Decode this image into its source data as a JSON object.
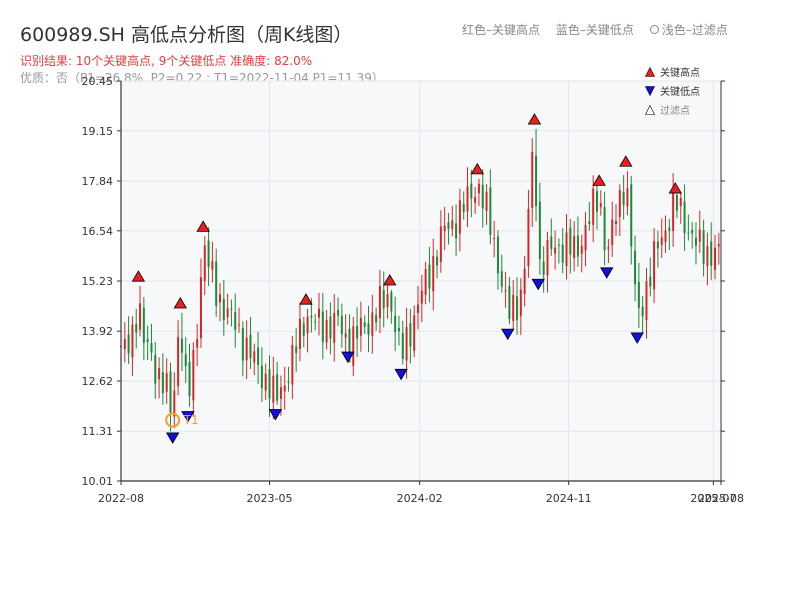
{
  "header": {
    "title": "600989.SH 高低点分析图（周K线图）",
    "result_text": "识别结果: 10个关键高点, 9个关键低点   准确度: 82.0%",
    "quality_text": "优质：否（P1=26.8%, P2=0.22 ; T1=2022-11-04 P1=11.39）",
    "legend_red": "红色–关键高点",
    "legend_blue": "蓝色–关键低点",
    "legend_hollow": "浅色–过滤点"
  },
  "colors": {
    "up": "#d62728",
    "down": "#1a8a3a",
    "high_marker": "#e82020",
    "low_marker": "#1010dd",
    "t1_marker": "#f0a020",
    "plot_bg": "#f7f8fa",
    "grid": "#e2e5ea"
  },
  "chart_data": {
    "type": "candlestick",
    "title": "600989.SH 高低点分析图（周K线图）",
    "xlabel": "",
    "ylabel": "",
    "ylim": [
      10.01,
      20.45
    ],
    "yticks": [
      10.01,
      11.31,
      12.62,
      13.92,
      15.23,
      16.54,
      17.84,
      19.15,
      20.45
    ],
    "ytick_labels": [
      "10.01",
      "11.31",
      "12.62",
      "13.92",
      "15.23",
      "16.54",
      "17.84",
      "19.15",
      "20.45"
    ],
    "xlim": [
      "2022-08-01",
      "2025-08-08"
    ],
    "xticks": [
      {
        "date": "2022-08-01",
        "label": "2022-08"
      },
      {
        "date": "2023-05-01",
        "label": "2023-05"
      },
      {
        "date": "2024-02-01",
        "label": "2024-02"
      },
      {
        "date": "2024-11-01",
        "label": "2024-11"
      },
      {
        "date": "2025-07-25",
        "label": "2025-07"
      },
      {
        "date": "2025-08-08",
        "label": "2025-08"
      }
    ],
    "legend": {
      "position": "top-right",
      "entries": [
        {
          "label": "关键高点",
          "marker": "triangle-up",
          "color": "#e82020"
        },
        {
          "label": "关键低点",
          "marker": "triangle-down",
          "color": "#1010dd"
        },
        {
          "label": "过滤点",
          "marker": "triangle-up-hollow",
          "color": "#999999"
        }
      ]
    },
    "key_highs": [
      {
        "date": "2022-09-02",
        "value": 15.1
      },
      {
        "date": "2022-11-18",
        "value": 14.4
      },
      {
        "date": "2022-12-30",
        "value": 16.4
      },
      {
        "date": "2023-07-07",
        "value": 14.5
      },
      {
        "date": "2023-12-08",
        "value": 15.0
      },
      {
        "date": "2024-05-17",
        "value": 17.9
      },
      {
        "date": "2024-08-30",
        "value": 19.2
      },
      {
        "date": "2024-12-27",
        "value": 17.6
      },
      {
        "date": "2025-02-14",
        "value": 18.1
      },
      {
        "date": "2025-05-16",
        "value": 17.4
      }
    ],
    "key_lows": [
      {
        "date": "2022-11-04",
        "value": 11.39
      },
      {
        "date": "2022-12-02",
        "value": 11.95
      },
      {
        "date": "2023-05-12",
        "value": 12.0
      },
      {
        "date": "2023-09-22",
        "value": 13.5
      },
      {
        "date": "2023-12-29",
        "value": 13.05
      },
      {
        "date": "2024-07-12",
        "value": 14.1
      },
      {
        "date": "2024-09-06",
        "value": 15.4
      },
      {
        "date": "2025-01-10",
        "value": 15.7
      },
      {
        "date": "2025-03-07",
        "value": 14.0
      }
    ],
    "t1": {
      "date": "2022-11-04",
      "value": 11.39,
      "label": "T1"
    },
    "price_path": [
      [
        "2022-07-29",
        13.6
      ],
      [
        "2022-08-12",
        13.3
      ],
      [
        "2022-08-26",
        14.0
      ],
      [
        "2022-09-02",
        15.0
      ],
      [
        "2022-09-09",
        13.8
      ],
      [
        "2022-09-30",
        13.0
      ],
      [
        "2022-10-21",
        12.6
      ],
      [
        "2022-11-04",
        11.5
      ],
      [
        "2022-11-11",
        13.5
      ],
      [
        "2022-11-18",
        14.3
      ],
      [
        "2022-11-25",
        13.0
      ],
      [
        "2022-12-02",
        12.1
      ],
      [
        "2022-12-16",
        13.4
      ],
      [
        "2022-12-30",
        16.3
      ],
      [
        "2023-01-20",
        15.0
      ],
      [
        "2023-02-17",
        14.3
      ],
      [
        "2023-03-17",
        13.6
      ],
      [
        "2023-04-07",
        13.0
      ],
      [
        "2023-04-28",
        12.6
      ],
      [
        "2023-05-12",
        12.1
      ],
      [
        "2023-06-09",
        13.0
      ],
      [
        "2023-07-07",
        14.4
      ],
      [
        "2023-08-04",
        14.0
      ],
      [
        "2023-09-01",
        14.2
      ],
      [
        "2023-09-22",
        13.6
      ],
      [
        "2023-10-27",
        14.1
      ],
      [
        "2023-12-08",
        14.9
      ],
      [
        "2023-12-29",
        13.2
      ],
      [
        "2024-01-26",
        14.5
      ],
      [
        "2024-02-23",
        15.6
      ],
      [
        "2024-03-15",
        16.5
      ],
      [
        "2024-04-12",
        16.9
      ],
      [
        "2024-05-17",
        17.8
      ],
      [
        "2024-06-14",
        16.5
      ],
      [
        "2024-07-12",
        14.3
      ],
      [
        "2024-08-09",
        15.0
      ],
      [
        "2024-08-30",
        19.1
      ],
      [
        "2024-09-06",
        15.6
      ],
      [
        "2024-10-11",
        16.2
      ],
      [
        "2024-11-15",
        16.0
      ],
      [
        "2024-12-27",
        17.5
      ],
      [
        "2025-01-10",
        15.9
      ],
      [
        "2025-02-14",
        18.0
      ],
      [
        "2025-03-07",
        14.2
      ],
      [
        "2025-04-11",
        16.0
      ],
      [
        "2025-05-16",
        17.3
      ],
      [
        "2025-06-27",
        16.1
      ],
      [
        "2025-08-08",
        15.9
      ]
    ]
  }
}
